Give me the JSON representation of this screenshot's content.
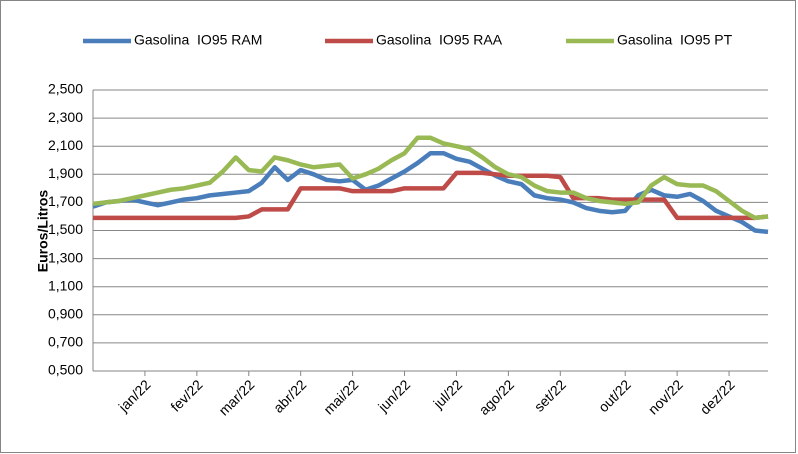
{
  "chart_data": {
    "type": "line",
    "y_label": "Euros/Litros",
    "categories": [
      null,
      null,
      null,
      null,
      "jan/22",
      null,
      null,
      null,
      "fev/22",
      null,
      null,
      null,
      "mar/22",
      null,
      null,
      null,
      "abr/22",
      null,
      null,
      null,
      "mai/22",
      null,
      null,
      null,
      "jun/22",
      null,
      null,
      null,
      "jul/22",
      null,
      null,
      null,
      "ago/22",
      null,
      null,
      null,
      "set/22",
      null,
      null,
      null,
      null,
      "out/22",
      null,
      null,
      null,
      "nov/22",
      null,
      null,
      null,
      "dez/22",
      null,
      null,
      null
    ],
    "series": [
      {
        "name": "Gasolina  IO95 RAM",
        "color": "#4a7ebb",
        "values": [
          1.67,
          1.7,
          1.71,
          1.72,
          1.7,
          1.68,
          1.7,
          1.72,
          1.73,
          1.75,
          1.76,
          1.77,
          1.78,
          1.84,
          1.95,
          1.86,
          1.93,
          1.9,
          1.86,
          1.85,
          1.86,
          1.79,
          1.82,
          1.87,
          1.92,
          1.98,
          2.05,
          2.05,
          2.01,
          1.99,
          1.94,
          1.89,
          1.85,
          1.83,
          1.75,
          1.73,
          1.72,
          1.7,
          1.66,
          1.64,
          1.63,
          1.64,
          1.75,
          1.79,
          1.75,
          1.74,
          1.76,
          1.71,
          1.64,
          1.6,
          1.56,
          1.5,
          1.49
        ]
      },
      {
        "name": "Gasolina  IO95 RAA",
        "color": "#be4b48",
        "values": [
          1.59,
          1.59,
          1.59,
          1.59,
          1.59,
          1.59,
          1.59,
          1.59,
          1.59,
          1.59,
          1.59,
          1.59,
          1.6,
          1.65,
          1.65,
          1.65,
          1.8,
          1.8,
          1.8,
          1.8,
          1.78,
          1.78,
          1.78,
          1.78,
          1.8,
          1.8,
          1.8,
          1.8,
          1.91,
          1.91,
          1.91,
          1.9,
          1.89,
          1.89,
          1.89,
          1.89,
          1.88,
          1.73,
          1.73,
          1.73,
          1.72,
          1.72,
          1.72,
          1.72,
          1.72,
          1.59,
          1.59,
          1.59,
          1.59,
          1.59,
          1.59,
          1.59,
          1.6
        ]
      },
      {
        "name": "Gasolina  IO95 PT",
        "color": "#98b954",
        "values": [
          1.69,
          1.7,
          1.71,
          1.73,
          1.75,
          1.77,
          1.79,
          1.8,
          1.82,
          1.84,
          1.92,
          2.02,
          1.93,
          1.92,
          2.02,
          2.0,
          1.97,
          1.95,
          1.96,
          1.97,
          1.87,
          1.9,
          1.94,
          2.0,
          2.05,
          2.16,
          2.16,
          2.12,
          2.1,
          2.08,
          2.02,
          1.95,
          1.9,
          1.88,
          1.82,
          1.78,
          1.77,
          1.77,
          1.73,
          1.71,
          1.7,
          1.69,
          1.7,
          1.82,
          1.88,
          1.83,
          1.82,
          1.82,
          1.78,
          1.71,
          1.64,
          1.59,
          1.6
        ]
      }
    ],
    "ylim": [
      0.5,
      2.5
    ],
    "yticks": [
      {
        "value": 0.5,
        "label": "0,500"
      },
      {
        "value": 0.7,
        "label": "0,700"
      },
      {
        "value": 0.9,
        "label": "0,900"
      },
      {
        "value": 1.1,
        "label": "1,100"
      },
      {
        "value": 1.3,
        "label": "1,300"
      },
      {
        "value": 1.5,
        "label": "1,500"
      },
      {
        "value": 1.7,
        "label": "1,700"
      },
      {
        "value": 1.9,
        "label": "1,900"
      },
      {
        "value": 2.1,
        "label": "2,100"
      },
      {
        "value": 2.3,
        "label": "2,300"
      },
      {
        "value": 2.5,
        "label": "2,500"
      }
    ],
    "grid": true,
    "legend": "top"
  }
}
